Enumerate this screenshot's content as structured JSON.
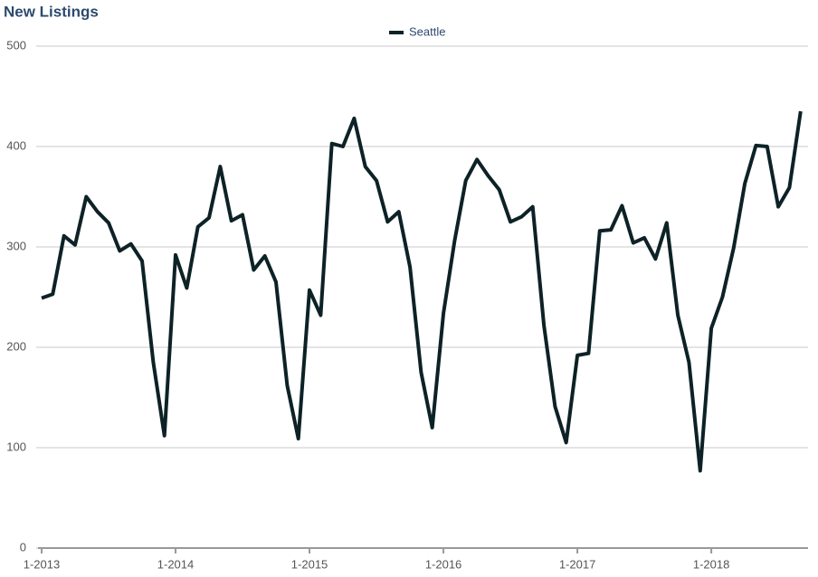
{
  "chart_data": {
    "type": "line",
    "title": "New Listings",
    "categories": [
      "1-2013",
      null,
      null,
      null,
      null,
      null,
      null,
      null,
      null,
      null,
      null,
      null,
      "1-2014",
      null,
      null,
      null,
      null,
      null,
      null,
      null,
      null,
      null,
      null,
      null,
      "1-2015",
      null,
      null,
      null,
      null,
      null,
      null,
      null,
      null,
      null,
      null,
      null,
      "1-2016",
      null,
      null,
      null,
      null,
      null,
      null,
      null,
      null,
      null,
      null,
      null,
      "1-2017",
      null,
      null,
      null,
      null,
      null,
      null,
      null,
      null,
      null,
      null,
      null,
      "1-2018",
      null,
      null,
      null,
      null,
      null,
      null,
      null,
      null
    ],
    "series": [
      {
        "name": "Seattle",
        "color": "#0d2226",
        "values": [
          249,
          253,
          311,
          302,
          350,
          335,
          324,
          296,
          303,
          286,
          185,
          112,
          292,
          259,
          320,
          329,
          380,
          326,
          332,
          277,
          291,
          265,
          162,
          109,
          257,
          232,
          403,
          400,
          428,
          380,
          366,
          325,
          335,
          280,
          175,
          120,
          234,
          306,
          366,
          387,
          371,
          357,
          325,
          330,
          340,
          222,
          141,
          105,
          192,
          194,
          316,
          317,
          341,
          304,
          309,
          288,
          324,
          232,
          185,
          77,
          219,
          250,
          299,
          363,
          401,
          400,
          340,
          359,
          435
        ]
      }
    ],
    "ylim": [
      0,
      500
    ],
    "yticks": [
      0,
      100,
      200,
      300,
      400,
      500
    ],
    "grid": true,
    "legend": "top"
  }
}
